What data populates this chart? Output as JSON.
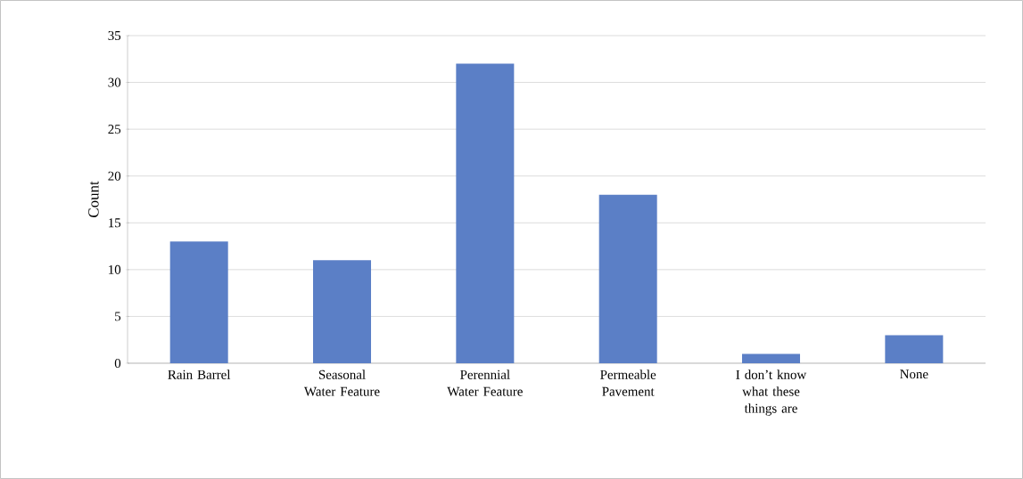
{
  "chart_data": {
    "type": "bar",
    "ylabel": "Count",
    "categories": [
      "Rain Barrel",
      "Seasonal Water Feature",
      "Perennial Water Feature",
      "Permeable Pavement",
      "I don’t know what these things are",
      "None"
    ],
    "values": [
      13,
      11,
      32,
      18,
      1,
      3
    ],
    "color": "#5b7fc6",
    "ylim": [
      0,
      35
    ],
    "yticks": [
      0,
      5,
      10,
      15,
      20,
      25,
      30,
      35
    ],
    "grid": "y"
  }
}
